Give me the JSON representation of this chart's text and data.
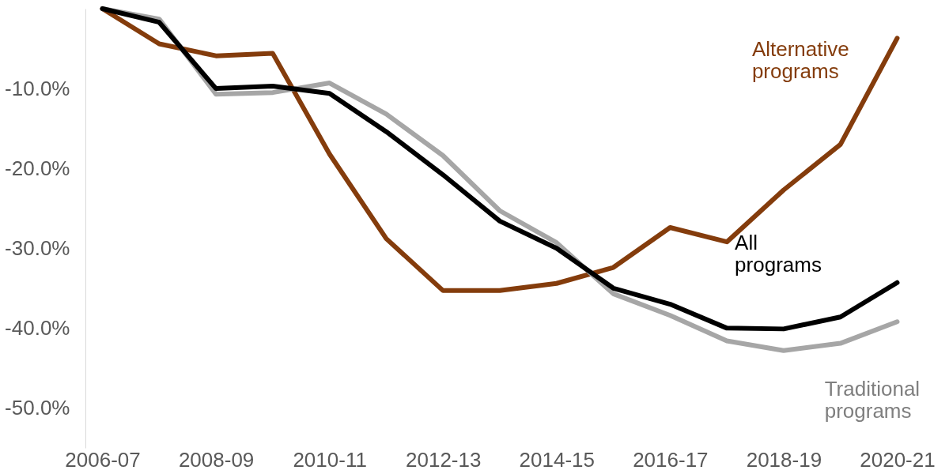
{
  "chart_data": {
    "type": "line",
    "categories": [
      "2006-07",
      null,
      "2008-09",
      null,
      "2010-11",
      null,
      "2012-13",
      null,
      "2014-15",
      null,
      "2016-17",
      null,
      "2018-19",
      null,
      "2020-21"
    ],
    "series": [
      {
        "name": "Alternative programs",
        "color": "#843c0c",
        "values": [
          0,
          -4.4,
          -5.9,
          -5.6,
          -18.2,
          -28.8,
          -35.3,
          -35.3,
          -34.4,
          -32.4,
          -27.4,
          -29.2,
          -22.7,
          -17.0,
          -3.7
        ]
      },
      {
        "name": "Traditional programs",
        "color": "#a6a6a6",
        "values": [
          0,
          -1.3,
          -10.7,
          -10.5,
          -9.3,
          -13.2,
          -18.4,
          -25.3,
          -29.3,
          -35.7,
          -38.4,
          -41.6,
          -42.8,
          -41.9,
          -39.2
        ]
      },
      {
        "name": "All programs",
        "color": "#000000",
        "values": [
          0,
          -1.7,
          -10.0,
          -9.7,
          -10.6,
          -15.4,
          -20.8,
          -26.6,
          -30.0,
          -35.0,
          -37.0,
          -40.0,
          -40.1,
          -38.6,
          -34.3
        ]
      }
    ],
    "ylim": [
      -55,
      0
    ],
    "yticks": [
      {
        "value": -10,
        "label": "-10.0%"
      },
      {
        "value": -20,
        "label": "-20.0%"
      },
      {
        "value": -30,
        "label": "-30.0%"
      },
      {
        "value": -40,
        "label": "-40.0%"
      },
      {
        "value": -50,
        "label": "-50.0%"
      }
    ],
    "grid": false,
    "marker": "none",
    "line_style": "solid"
  }
}
